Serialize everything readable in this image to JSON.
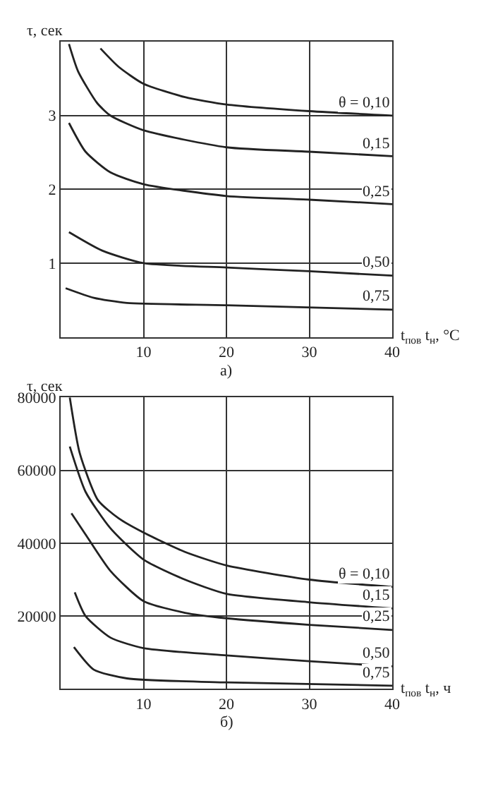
{
  "chart_data": [
    {
      "type": "line",
      "ylabel": "τ, сек",
      "xlabel": "t$_{пов}$ t$_{н}$, °С",
      "annotations": [
        "а)"
      ],
      "xlim": [
        0,
        40
      ],
      "ylim": [
        0,
        4
      ],
      "xticks": [
        10,
        20,
        30,
        40
      ],
      "yticks": [
        1,
        2,
        3
      ],
      "grid": true,
      "marker": "none",
      "line_style": "solid",
      "series": [
        {
          "name": "θ = 0,10",
          "color": "#222222",
          "x": [
            4.8,
            7,
            10,
            15,
            20,
            30,
            40
          ],
          "values": [
            3.91,
            3.66,
            3.43,
            3.25,
            3.15,
            3.06,
            3.0
          ]
        },
        {
          "name": "0,15",
          "color": "#222222",
          "x": [
            1.0,
            2.1,
            4.4,
            6,
            10,
            20,
            30,
            40
          ],
          "values": [
            3.97,
            3.6,
            3.17,
            3.0,
            2.8,
            2.57,
            2.51,
            2.45
          ]
        },
        {
          "name": "0,25",
          "color": "#222222",
          "x": [
            1.0,
            3,
            6,
            10,
            20,
            30,
            40
          ],
          "values": [
            2.9,
            2.51,
            2.23,
            2.07,
            1.91,
            1.86,
            1.8
          ]
        },
        {
          "name": "0,50",
          "color": "#222222",
          "x": [
            1.0,
            5,
            10,
            20,
            30,
            40
          ],
          "values": [
            1.42,
            1.17,
            1.0,
            0.94,
            0.89,
            0.83
          ]
        },
        {
          "name": "0,75",
          "color": "#222222",
          "x": [
            0.6,
            4,
            8,
            20,
            40
          ],
          "values": [
            0.66,
            0.53,
            0.46,
            0.43,
            0.37
          ]
        }
      ]
    },
    {
      "type": "line",
      "ylabel": "τ, сек",
      "xlabel": "t$_{пов}$ t$_{н}$, ч",
      "annotations": [
        "б)"
      ],
      "xlim": [
        0,
        40
      ],
      "ylim": [
        0,
        80000
      ],
      "xticks": [
        10,
        20,
        30,
        40
      ],
      "yticks": [
        20000,
        40000,
        60000,
        80000
      ],
      "grid": true,
      "marker": "none",
      "line_style": "solid",
      "series": [
        {
          "name": "θ = 0,10",
          "color": "#222222",
          "x": [
            1.1,
            2.3,
            4.5,
            7,
            10,
            15,
            20,
            30,
            40
          ],
          "values": [
            80000,
            64700,
            51800,
            46800,
            42900,
            37600,
            33900,
            30000,
            28000
          ]
        },
        {
          "name": "0,15",
          "color": "#222222",
          "x": [
            1.1,
            3,
            6,
            10,
            15,
            20,
            30,
            40
          ],
          "values": [
            66500,
            54100,
            44100,
            35500,
            30000,
            26100,
            23800,
            22100
          ]
        },
        {
          "name": "0,25",
          "color": "#222222",
          "x": [
            1.3,
            3,
            6,
            10,
            15,
            20,
            30,
            40
          ],
          "values": [
            48200,
            42400,
            32400,
            24100,
            20900,
            19400,
            17600,
            16200
          ]
        },
        {
          "name": "0,50",
          "color": "#222222",
          "x": [
            1.7,
            3,
            6,
            10,
            20,
            30,
            40
          ],
          "values": [
            26500,
            20000,
            14100,
            11200,
            9200,
            7600,
            6200
          ]
        },
        {
          "name": "0,75",
          "color": "#222222",
          "x": [
            1.6,
            4,
            8,
            20,
            40
          ],
          "values": [
            11500,
            5300,
            2900,
            1800,
            900
          ]
        }
      ]
    }
  ]
}
